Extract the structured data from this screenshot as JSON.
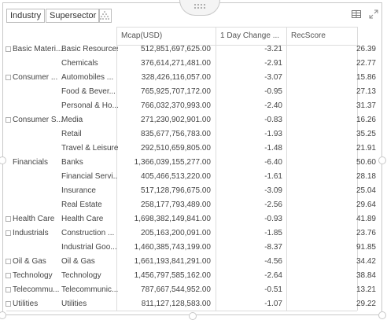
{
  "toolbar": {
    "chips": [
      "Industry",
      "Supersector"
    ]
  },
  "table": {
    "headers": [
      "Mcap(USD)",
      "1 Day Change ...",
      "RecScore"
    ],
    "rows": [
      {
        "sector": "Basic Materi...",
        "supersector": "Basic Resources",
        "mcap": "512,851,697,625.00",
        "change": "-3.21",
        "rec": "26.39"
      },
      {
        "sector": "",
        "supersector": "Chemicals",
        "mcap": "376,614,271,481.00",
        "change": "-2.91",
        "rec": "22.77"
      },
      {
        "sector": "Consumer ...",
        "supersector": "Automobiles ...",
        "mcap": "328,426,116,057.00",
        "change": "-3.07",
        "rec": "15.86"
      },
      {
        "sector": "",
        "supersector": "Food & Bever...",
        "mcap": "765,925,707,172.00",
        "change": "-0.95",
        "rec": "27.13"
      },
      {
        "sector": "",
        "supersector": "Personal & Ho...",
        "mcap": "766,032,370,993.00",
        "change": "-2.40",
        "rec": "31.37"
      },
      {
        "sector": "Consumer S...",
        "supersector": "Media",
        "mcap": "271,230,902,901.00",
        "change": "-0.83",
        "rec": "16.26"
      },
      {
        "sector": "",
        "supersector": "Retail",
        "mcap": "835,677,756,783.00",
        "change": "-1.93",
        "rec": "35.25"
      },
      {
        "sector": "",
        "supersector": "Travel & Leisure",
        "mcap": "292,510,659,805.00",
        "change": "-1.48",
        "rec": "21.91"
      },
      {
        "sector": "Financials",
        "supersector": "Banks",
        "mcap": "1,366,039,155,277.00",
        "change": "-6.40",
        "rec": "50.60"
      },
      {
        "sector": "",
        "supersector": "Financial Servi...",
        "mcap": "405,466,513,220.00",
        "change": "-1.61",
        "rec": "28.18"
      },
      {
        "sector": "",
        "supersector": "Insurance",
        "mcap": "517,128,796,675.00",
        "change": "-3.09",
        "rec": "25.04"
      },
      {
        "sector": "",
        "supersector": "Real Estate",
        "mcap": "258,177,793,489.00",
        "change": "-2.56",
        "rec": "29.64"
      },
      {
        "sector": "Health Care",
        "supersector": "Health Care",
        "mcap": "1,698,382,149,841.00",
        "change": "-0.93",
        "rec": "41.89"
      },
      {
        "sector": "Industrials",
        "supersector": "Construction ...",
        "mcap": "205,163,200,091.00",
        "change": "-1.85",
        "rec": "23.76"
      },
      {
        "sector": "",
        "supersector": "Industrial Goo...",
        "mcap": "1,460,385,743,199.00",
        "change": "-8.37",
        "rec": "91.85"
      },
      {
        "sector": "Oil & Gas",
        "supersector": "Oil & Gas",
        "mcap": "1,661,193,841,291.00",
        "change": "-4.56",
        "rec": "34.42"
      },
      {
        "sector": "Technology",
        "supersector": "Technology",
        "mcap": "1,456,797,585,162.00",
        "change": "-2.64",
        "rec": "38.84"
      },
      {
        "sector": "Telecommu...",
        "supersector": "Telecommunic...",
        "mcap": "787,667,544,952.00",
        "change": "-0.51",
        "rec": "13.21"
      },
      {
        "sector": "Utilities",
        "supersector": "Utilities",
        "mcap": "811,127,128,583.00",
        "change": "-1.07",
        "rec": "29.22"
      }
    ]
  },
  "colors": {
    "border": "#c8c8c8",
    "gridline": "#dcdcdc",
    "text": "#444444"
  },
  "icons": [
    "drag-handle-icon",
    "scatter-icon",
    "table-view-icon",
    "expand-icon",
    "expander-icon"
  ]
}
